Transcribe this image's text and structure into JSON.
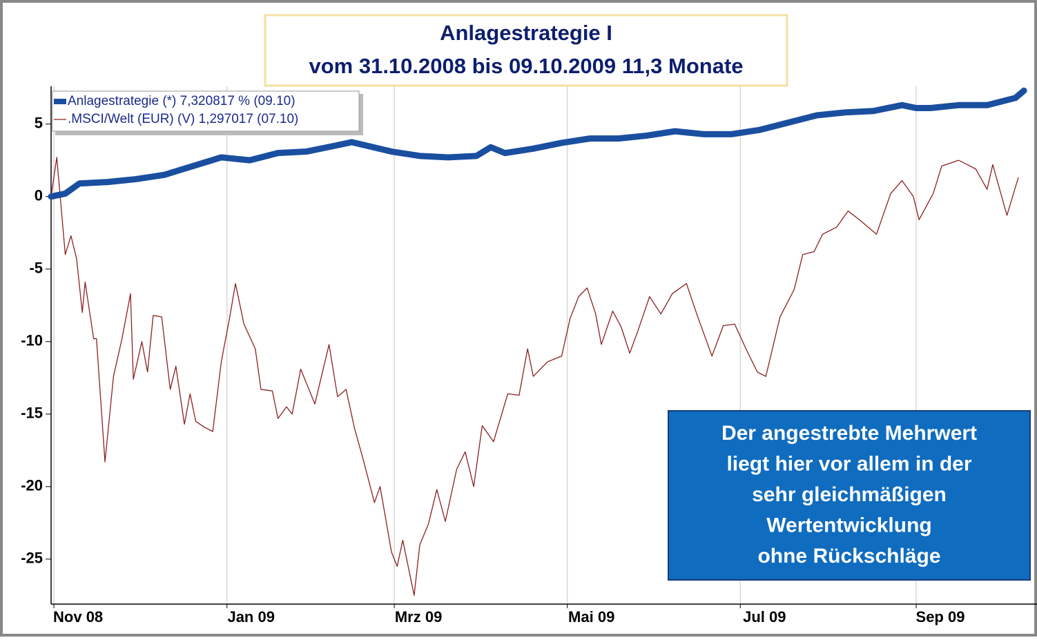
{
  "chart_data": {
    "type": "line",
    "title": "Anlagestrategie I",
    "subtitle": "vom 31.10.2008 bis 09.10.2009 11,3 Monate",
    "annotation": [
      "Der angestrebte Mehrwert",
      "liegt hier vor allem in der",
      "sehr gleichmäßigen",
      "Wertentwicklung",
      "ohne Rückschläge"
    ],
    "xlim": [
      0,
      347.6
    ],
    "xticks": [
      {
        "value": 1,
        "label": "Nov 08"
      },
      {
        "value": 62,
        "label": "Jan 09"
      },
      {
        "value": 121,
        "label": "Mrz 09"
      },
      {
        "value": 182,
        "label": "Mai 09"
      },
      {
        "value": 243,
        "label": "Jul 09"
      },
      {
        "value": 305,
        "label": "Sep 09"
      }
    ],
    "ylim": [
      -28.1,
      7.6
    ],
    "yticks": [
      5,
      0,
      -5,
      -10,
      -15,
      -20,
      -25
    ],
    "grid": "x",
    "legend": "top-left",
    "series": [
      {
        "name": "Anlagestrategie (*) 7,320817 % (09.10)",
        "color": "#1a4fa0",
        "width": 9,
        "x": [
          0,
          5,
          10,
          20,
          30,
          40,
          50,
          60,
          70,
          80,
          90,
          100,
          106,
          120,
          130,
          140,
          150,
          155,
          160,
          170,
          180,
          190,
          200,
          210,
          220,
          230,
          240,
          250,
          260,
          270,
          280,
          290,
          300,
          305,
          310,
          320,
          330,
          340,
          343
        ],
        "values": [
          0,
          0.2,
          0.9,
          1,
          1.2,
          1.5,
          2.1,
          2.7,
          2.5,
          3.0,
          3.1,
          3.5,
          3.75,
          3.1,
          2.8,
          2.7,
          2.8,
          3.4,
          3.0,
          3.3,
          3.7,
          4.0,
          4.0,
          4.2,
          4.5,
          4.3,
          4.3,
          4.6,
          5.1,
          5.6,
          5.8,
          5.9,
          6.3,
          6.1,
          6.1,
          6.3,
          6.3,
          6.8,
          7.3
        ]
      },
      {
        "name": ".MSCI/Welt (EUR) (V) 1,297017 (07.10)",
        "color": "#8b2020",
        "width": 1.3,
        "x": [
          0,
          2,
          5,
          7,
          9,
          11,
          12,
          15,
          16,
          19,
          22,
          25,
          28,
          29,
          32,
          34,
          36,
          39,
          42,
          44,
          47,
          49,
          51,
          54,
          57,
          60,
          63,
          65,
          68,
          72,
          74,
          78,
          80,
          83,
          85,
          88,
          93,
          98,
          101,
          104,
          107,
          110,
          114,
          116,
          120,
          122,
          124,
          128,
          130,
          133,
          136,
          139,
          143,
          146,
          149,
          152,
          156,
          161,
          165,
          168,
          170,
          175,
          180,
          183,
          186,
          189,
          192,
          194,
          198,
          201,
          204,
          207,
          211,
          215,
          219,
          224,
          228,
          233,
          237,
          241,
          245,
          249,
          252,
          257,
          262,
          265,
          269,
          272,
          277,
          281,
          285,
          291,
          296,
          300,
          304,
          306,
          311,
          314,
          320,
          326,
          330,
          332,
          337,
          341
        ],
        "values": [
          0,
          2.7,
          -4,
          -2.7,
          -4.3,
          -8,
          -5.9,
          -9.8,
          -9.8,
          -18.3,
          -12.4,
          -9.8,
          -6.7,
          -12.6,
          -10,
          -12.1,
          -8.2,
          -8.3,
          -13.3,
          -11.7,
          -15.7,
          -13.6,
          -15.5,
          -15.9,
          -16.2,
          -11.4,
          -8.3,
          -6,
          -8.8,
          -10.5,
          -13.3,
          -13.4,
          -15.3,
          -14.5,
          -15,
          -11.9,
          -14.3,
          -10.2,
          -13.8,
          -13.3,
          -16,
          -18.1,
          -21.1,
          -20,
          -24.5,
          -25.5,
          -23.7,
          -27.5,
          -24,
          -22.6,
          -20.2,
          -22.4,
          -18.8,
          -17.6,
          -20,
          -15.8,
          -16.9,
          -13.6,
          -13.7,
          -10.5,
          -12.4,
          -11.4,
          -11,
          -8.4,
          -6.9,
          -6.3,
          -8.1,
          -10.2,
          -7.9,
          -9,
          -10.8,
          -9.2,
          -6.9,
          -8.1,
          -6.7,
          -6,
          -8.3,
          -11,
          -8.9,
          -8.8,
          -10.5,
          -12.1,
          -12.4,
          -8.3,
          -6.4,
          -4,
          -3.8,
          -2.6,
          -2.1,
          -1,
          -1.6,
          -2.6,
          0.2,
          1.1,
          0,
          -1.6,
          0.2,
          2.1,
          2.5,
          1.9,
          0.5,
          2.2,
          -1.3,
          1.3
        ]
      }
    ]
  }
}
